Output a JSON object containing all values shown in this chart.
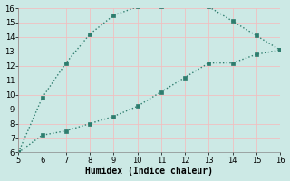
{
  "x": [
    5,
    6,
    7,
    8,
    9,
    10,
    11,
    12,
    13,
    14,
    15,
    16
  ],
  "y_upper": [
    6,
    9.8,
    12.2,
    14.2,
    15.5,
    16.1,
    16.1,
    16.3,
    16.1,
    15.1,
    14.1,
    13.1
  ],
  "y_lower": [
    6,
    7.2,
    7.5,
    8.0,
    8.5,
    9.2,
    10.2,
    11.2,
    12.2,
    12.2,
    12.8,
    13.1
  ],
  "xlabel": "Humidex (Indice chaleur)",
  "xlim": [
    5,
    16
  ],
  "ylim": [
    6,
    16
  ],
  "xticks": [
    5,
    6,
    7,
    8,
    9,
    10,
    11,
    12,
    13,
    14,
    15,
    16
  ],
  "yticks": [
    6,
    7,
    8,
    9,
    10,
    11,
    12,
    13,
    14,
    15,
    16
  ],
  "line_color": "#2e7d6e",
  "bg_color": "#cce9e5",
  "grid_color": "#f0c0c0",
  "marker": "s",
  "marker_size": 2.5,
  "line_width": 1.0,
  "font_family": "monospace",
  "font_size_tick": 6,
  "font_size_xlabel": 7
}
